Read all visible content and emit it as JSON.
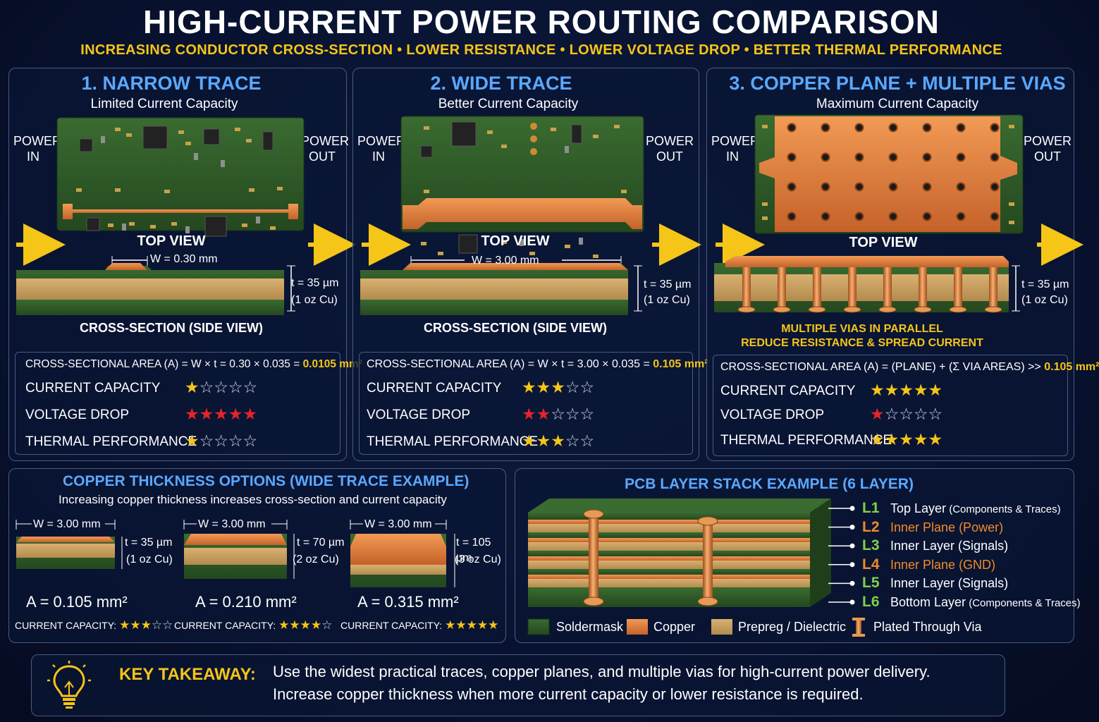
{
  "header": {
    "title": "HIGH-CURRENT POWER ROUTING COMPARISON",
    "subtitle": "INCREASING CONDUCTOR CROSS-SECTION  •  LOWER RESISTANCE  •  LOWER VOLTAGE DROP  •  BETTER THERMAL PERFORMANCE"
  },
  "panels": [
    {
      "title": "1. NARROW TRACE",
      "subtitle": "Limited Current Capacity",
      "power_in": "POWER IN",
      "power_out": "POWER OUT",
      "top_view": "TOP VIEW",
      "width_label": "W = 0.30 mm",
      "thickness_label": "t = 35 µm",
      "thickness_oz": "(1 oz Cu)",
      "cross_section": "CROSS-SECTION (SIDE VIEW)",
      "formula": "CROSS-SECTIONAL AREA (A) = W × t = 0.30 × 0.035 = ",
      "formula_result": "0.0105 mm²",
      "ratings": [
        {
          "label": "CURRENT CAPACITY",
          "stars": 1,
          "color": "gold"
        },
        {
          "label": "VOLTAGE DROP",
          "stars": 5,
          "color": "red"
        },
        {
          "label": "THERMAL PERFORMANCE",
          "stars": 1,
          "color": "gold"
        }
      ]
    },
    {
      "title": "2. WIDE TRACE",
      "subtitle": "Better Current Capacity",
      "power_in": "POWER IN",
      "power_out": "POWER OUT",
      "top_view": "TOP VIEW",
      "width_label": "W = 3.00 mm",
      "thickness_label": "t = 35 µm",
      "thickness_oz": "(1 oz Cu)",
      "cross_section": "CROSS-SECTION (SIDE VIEW)",
      "formula": "CROSS-SECTIONAL AREA (A) = W × t = 3.00 × 0.035 = ",
      "formula_result": "0.105 mm²",
      "ratings": [
        {
          "label": "CURRENT CAPACITY",
          "stars": 3,
          "color": "gold"
        },
        {
          "label": "VOLTAGE DROP",
          "stars": 2,
          "color": "red"
        },
        {
          "label": "THERMAL PERFORMANCE",
          "stars": 3,
          "color": "gold"
        }
      ]
    },
    {
      "title": "3. COPPER PLANE + MULTIPLE VIAS",
      "subtitle": "Maximum Current Capacity",
      "power_in": "POWER IN",
      "power_out": "POWER OUT",
      "top_view": "TOP VIEW",
      "thickness_label": "t = 35 µm",
      "thickness_oz": "(1 oz Cu)",
      "via_note_1": "MULTIPLE VIAS IN PARALLEL",
      "via_note_2": "REDUCE RESISTANCE & SPREAD CURRENT",
      "formula": "CROSS-SECTIONAL AREA (A) = (PLANE) + (Σ VIA AREAS) >> ",
      "formula_result": "0.105 mm²",
      "ratings": [
        {
          "label": "CURRENT CAPACITY",
          "stars": 5,
          "color": "gold"
        },
        {
          "label": "VOLTAGE DROP",
          "stars": 1,
          "color": "red"
        },
        {
          "label": "THERMAL PERFORMANCE",
          "stars": 5,
          "color": "gold"
        }
      ]
    }
  ],
  "thickness": {
    "title": "COPPER THICKNESS OPTIONS (WIDE TRACE EXAMPLE)",
    "subtitle": "Increasing copper thickness increases cross-section and current capacity",
    "options": [
      {
        "width": "W = 3.00 mm",
        "t": "t = 35 µm",
        "oz": "(1 oz Cu)",
        "area": "A = 0.105 mm²",
        "cc_label": "CURRENT CAPACITY:",
        "stars": 3
      },
      {
        "width": "W = 3.00 mm",
        "t": "t = 70 µm",
        "oz": "(2 oz Cu)",
        "area": "A = 0.210 mm²",
        "cc_label": "CURRENT CAPACITY:",
        "stars": 4
      },
      {
        "width": "W = 3.00 mm",
        "t": "t = 105 µm",
        "oz": "(3 oz Cu)",
        "area": "A = 0.315 mm²",
        "cc_label": "CURRENT CAPACITY:",
        "stars": 5
      }
    ]
  },
  "stack": {
    "title": "PCB LAYER STACK EXAMPLE (6 LAYER)",
    "layers": [
      {
        "id": "L1",
        "name": "Top Layer",
        "detail": "(Components & Traces)",
        "copper": false
      },
      {
        "id": "L2",
        "name": "Inner Plane (Power)",
        "detail": "",
        "copper": true
      },
      {
        "id": "L3",
        "name": "Inner Layer (Signals)",
        "detail": "",
        "copper": false
      },
      {
        "id": "L4",
        "name": "Inner Plane (GND)",
        "detail": "",
        "copper": true
      },
      {
        "id": "L5",
        "name": "Inner Layer (Signals)",
        "detail": "",
        "copper": false
      },
      {
        "id": "L6",
        "name": "Bottom Layer",
        "detail": "(Components & Traces)",
        "copper": false
      }
    ],
    "legend": [
      "Soldermask",
      "Copper",
      "Prepreg / Dielectric",
      "Plated Through Via"
    ]
  },
  "takeaway": {
    "label": "KEY TAKEAWAY:",
    "line1": "Use the widest practical traces, copper planes, and multiple vias for high-current power delivery.",
    "line2": "Increase copper thickness when more current capacity or lower resistance is required."
  },
  "colors": {
    "accent_blue": "#5aa8ff",
    "gold": "#f5c518",
    "red": "#e8232a",
    "copper": "#d8793a",
    "soldermask": "#2f5a2a",
    "prepreg": "#c9a262"
  }
}
